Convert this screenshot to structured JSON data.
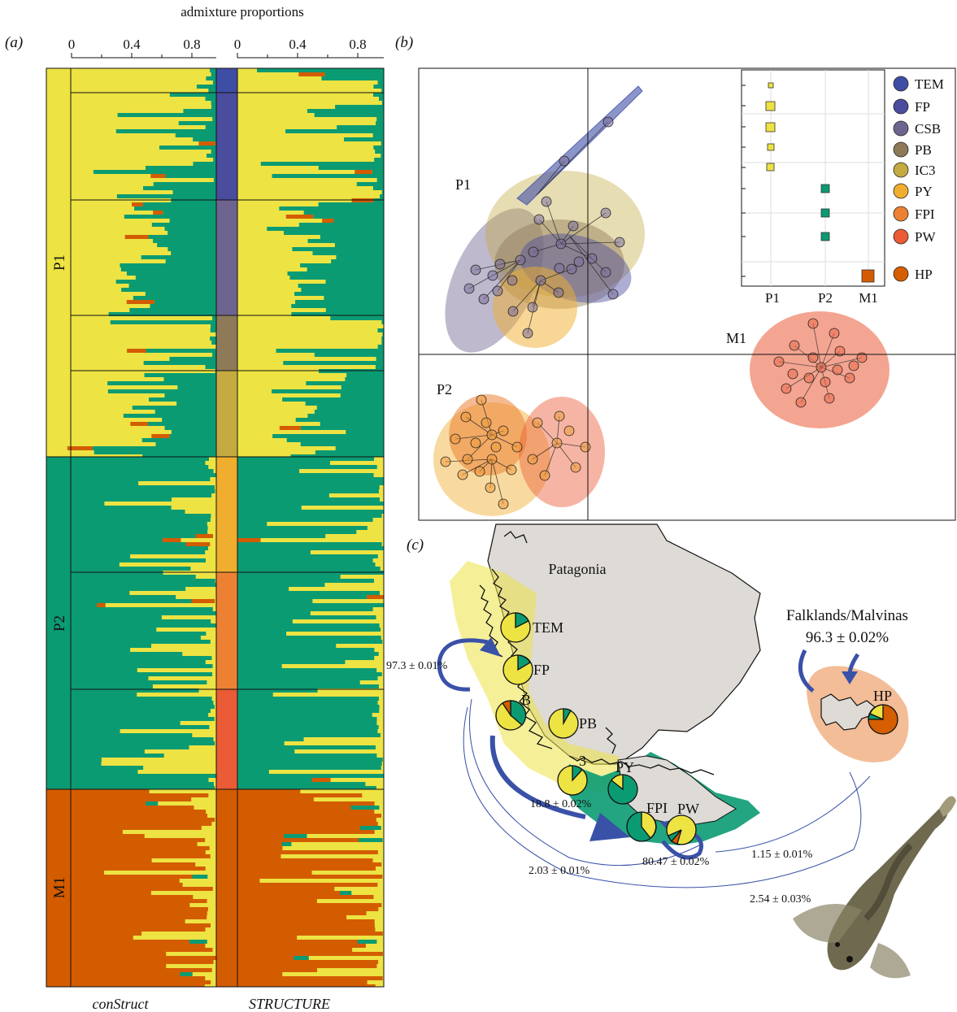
{
  "panel_labels": {
    "a": "(a)",
    "b": "(b)",
    "c": "(c)"
  },
  "colors": {
    "P1": "#ede343",
    "P2": "#0b9b73",
    "M1": "#d35c00",
    "TEM": "#3f4ea5",
    "FP": "#4a4c9e",
    "CSB": "#6e6490",
    "PB": "#8e7a58",
    "IC3": "#c4aa40",
    "PY": "#efae2d",
    "FPI": "#ed8133",
    "PW": "#ea5b36",
    "HP": "#d55e00"
  },
  "panel_a": {
    "axis_title": "admixture proportions",
    "ticks_construct": [
      "0",
      "0.4",
      "0.8"
    ],
    "ticks_structure": [
      "0",
      "0.4",
      "0.8"
    ],
    "group_labels": [
      "P1",
      "P2",
      "M1"
    ],
    "method_labels": [
      "conStruct",
      "STRUCTURE"
    ]
  },
  "panel_b": {
    "cluster_labels": [
      "P1",
      "P2",
      "M1"
    ],
    "inset_x_labels": [
      "P1",
      "P2",
      "M1"
    ],
    "legend": [
      {
        "key": "TEM",
        "label": "TEM"
      },
      {
        "key": "FP",
        "label": "FP"
      },
      {
        "key": "CSB",
        "label": "CSB"
      },
      {
        "key": "PB",
        "label": "PB"
      },
      {
        "key": "IC3",
        "label": "IC3"
      },
      {
        "key": "PY",
        "label": "PY"
      },
      {
        "key": "FPI",
        "label": "FPI"
      },
      {
        "key": "PW",
        "label": "PW"
      },
      {
        "key": "HP",
        "label": "HP"
      }
    ]
  },
  "panel_c": {
    "region": "Patagonia",
    "islands": "Falklands/Malvinas",
    "islands_pct": "96.3 ± 0.02%",
    "sites": [
      "TEM",
      "FP",
      "B",
      "PB",
      "3",
      "PY",
      "FPI",
      "PW",
      "HP"
    ],
    "migration": [
      "97.3 ± 0.01%",
      "18.8 ± 0.02%",
      "2.03 ± 0.01%",
      "80.47 ± 0.02%",
      "1.15 ± 0.01%",
      "2.54 ± 0.03%"
    ]
  }
}
